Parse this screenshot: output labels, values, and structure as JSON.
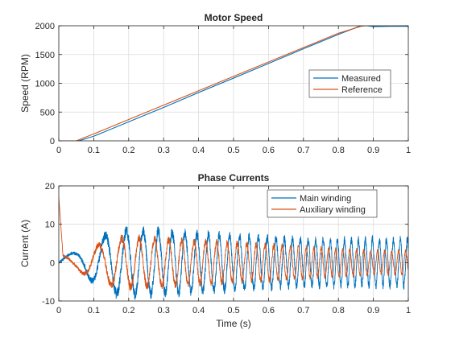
{
  "chart_data": [
    {
      "type": "line",
      "title": "Motor Speed",
      "xlabel": "",
      "ylabel": "Speed (RPM)",
      "xlim": [
        0,
        1
      ],
      "ylim": [
        0,
        2000
      ],
      "xticks": [
        0,
        0.1,
        0.2,
        0.3,
        0.4,
        0.5,
        0.6,
        0.7,
        0.8,
        0.9,
        1
      ],
      "xtick_labels": [
        "0",
        "0.1",
        "0.2",
        "0.3",
        "0.4",
        "0.5",
        "0.6",
        "0.7",
        "0.8",
        "0.9",
        "1"
      ],
      "yticks": [
        0,
        500,
        1000,
        1500,
        2000
      ],
      "ytick_labels": [
        "0",
        "500",
        "1000",
        "1500",
        "2000"
      ],
      "grid": true,
      "legend_position": "right",
      "series": [
        {
          "name": "Measured",
          "color": "#0072BD",
          "x": [
            0,
            0.05,
            0.06,
            0.1,
            0.2,
            0.3,
            0.4,
            0.5,
            0.6,
            0.7,
            0.8,
            0.86,
            0.88,
            0.9,
            0.95,
            1.0
          ],
          "y": [
            0,
            0,
            5,
            80,
            330,
            580,
            840,
            1090,
            1345,
            1600,
            1850,
            1990,
            2000,
            1985,
            1990,
            1990
          ]
        },
        {
          "name": "Reference",
          "color": "#D95319",
          "x": [
            0,
            0.05,
            0.1,
            0.2,
            0.3,
            0.4,
            0.5,
            0.6,
            0.7,
            0.8,
            0.87,
            0.9,
            1.0
          ],
          "y": [
            0,
            0,
            120,
            370,
            620,
            870,
            1120,
            1370,
            1620,
            1870,
            2000,
            2000,
            2000
          ]
        }
      ]
    },
    {
      "type": "line",
      "title": "Phase Currents",
      "xlabel": "Time (s)",
      "ylabel": "Current (A)",
      "xlim": [
        0,
        1
      ],
      "ylim": [
        -10,
        20
      ],
      "xticks": [
        0,
        0.1,
        0.2,
        0.3,
        0.4,
        0.5,
        0.6,
        0.7,
        0.8,
        0.9,
        1
      ],
      "xtick_labels": [
        "0",
        "0.1",
        "0.2",
        "0.3",
        "0.4",
        "0.5",
        "0.6",
        "0.7",
        "0.8",
        "0.9",
        "1"
      ],
      "yticks": [
        -10,
        0,
        10,
        20
      ],
      "ytick_labels": [
        "-10",
        "0",
        "10",
        "20"
      ],
      "grid": true,
      "legend_position": "top-right",
      "series": [
        {
          "name": "Main winding",
          "color": "#0072BD",
          "envelope": {
            "t": [
              0,
              0.05,
              0.1,
              0.15,
              0.2,
              0.3,
              0.4,
              0.5,
              0.6,
              0.7,
              0.8,
              0.9,
              1.0
            ],
            "amplitude": [
              2,
              2.5,
              5,
              8,
              8.5,
              8,
              7.5,
              7,
              6.5,
              6,
              6,
              6,
              6
            ],
            "frequency_hz": [
              5,
              8,
              12,
              15,
              20,
              25,
              30,
              35,
              40,
              45,
              50,
              50,
              50
            ]
          }
        },
        {
          "name": "Auxiliary winding",
          "color": "#D95319",
          "envelope": {
            "t": [
              0,
              0.05,
              0.1,
              0.15,
              0.2,
              0.3,
              0.4,
              0.5,
              0.6,
              0.7,
              0.8,
              0.9,
              1.0
            ],
            "amplitude": [
              2,
              2,
              4,
              6,
              6.5,
              6,
              5.5,
              5,
              4.5,
              4,
              3.5,
              3,
              3
            ],
            "frequency_hz": [
              5,
              8,
              12,
              15,
              20,
              25,
              30,
              35,
              40,
              45,
              50,
              50,
              50
            ]
          },
          "initial_peak": 17
        }
      ]
    }
  ]
}
